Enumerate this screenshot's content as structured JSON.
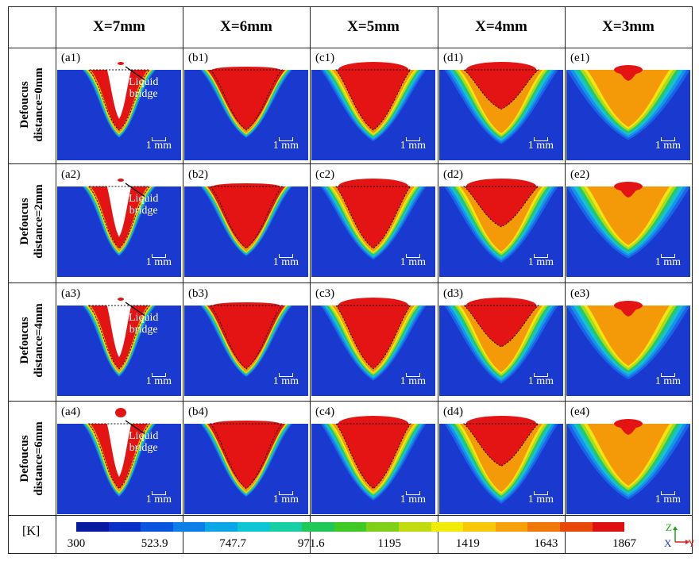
{
  "columns": [
    "X=7mm",
    "X=6mm",
    "X=5mm",
    "X=4mm",
    "X=3mm"
  ],
  "rows": [
    {
      "label_line1": "Defoucus",
      "label_line2": "distance=0mm",
      "panels": [
        "(a1)",
        "(b1)",
        "(c1)",
        "(d1)",
        "(e1)"
      ]
    },
    {
      "label_line1": "Defoucus",
      "label_line2": "distance=2mm",
      "panels": [
        "(a2)",
        "(b2)",
        "(c2)",
        "(d2)",
        "(e2)"
      ]
    },
    {
      "label_line1": "Defoucus",
      "label_line2": "distance=4mm",
      "panels": [
        "(a3)",
        "(b3)",
        "(c3)",
        "(d3)",
        "(e3)"
      ]
    },
    {
      "label_line1": "Defoucus",
      "label_line2": "distance=6mm",
      "panels": [
        "(a4)",
        "(b4)",
        "(c4)",
        "(d4)",
        "(e4)"
      ]
    }
  ],
  "annotation": {
    "line1": "Liquid",
    "line2": "bridge"
  },
  "scale_label": "1 mm",
  "legend": {
    "unit": "[K]",
    "ticks": [
      "300",
      "523.9",
      "747.7",
      "971.6",
      "1195",
      "1419",
      "1643",
      "1867"
    ],
    "colors": [
      "#0a1aa0",
      "#0a2fc8",
      "#0a55e0",
      "#0a7fe6",
      "#0aa6e6",
      "#10c6d2",
      "#18d0a4",
      "#20c858",
      "#40c826",
      "#80d01a",
      "#c0dc10",
      "#f0ec08",
      "#f8c808",
      "#f8a008",
      "#f07808",
      "#e84808",
      "#e01010"
    ]
  },
  "axes": {
    "z": "Z",
    "x": "X",
    "y": "Y"
  },
  "colors": {
    "background": "#1a3acf",
    "molten": "#e41414",
    "cavity": "#ffffff"
  }
}
